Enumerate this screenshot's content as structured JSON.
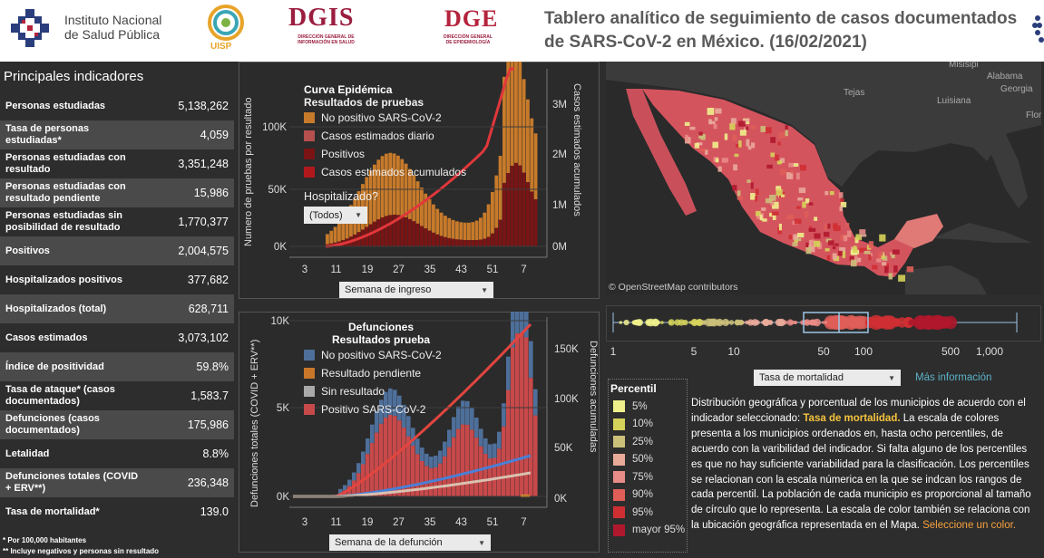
{
  "header": {
    "institute_line1": "Instituto Nacional",
    "institute_line2": "de Salud Pública",
    "uisp": "UISP",
    "dgis": "DGIS",
    "dgis_sub1": "DIRECCIÓN GENERAL DE",
    "dgis_sub2": "INFORMACIÓN EN SALUD",
    "dge": "DGE",
    "dge_sub1": "DIRECCIÓN GENERAL",
    "dge_sub2": "DE EPIDEMIOLOGÍA",
    "title_line1": "Tablero analítico de seguimiento de casos documentados",
    "title_line2": "de SARS-CoV-2 en México. (16/02/2021)"
  },
  "indicators": {
    "heading": "Principales indicadores",
    "rows": [
      {
        "label": "Personas estudiadas",
        "value": "5,138,262"
      },
      {
        "label": "Tasa de personas estudiadas*",
        "value": "4,059"
      },
      {
        "label": "Personas estudiadas con resultado",
        "value": "3,351,248"
      },
      {
        "label": "Personas estudiadas con resultado pendiente",
        "value": "15,986"
      },
      {
        "label": "Personas estudiadas sin posibilidad de resultado",
        "value": "1,770,377"
      },
      {
        "label": "Positivos",
        "value": "2,004,575"
      },
      {
        "label": "Hospitalizados positivos",
        "value": "377,682"
      },
      {
        "label": "Hospitalizados (total)",
        "value": "628,711"
      },
      {
        "label": "Casos estimados",
        "value": "3,073,102"
      },
      {
        "label": "Índice de positividad",
        "value": "59.8%"
      },
      {
        "label": "Tasa de ataque* (casos documentados)",
        "value": "1,583.7"
      },
      {
        "label": "Defunciones (casos documentados)",
        "value": "175,986"
      },
      {
        "label": "Letalidad",
        "value": "8.8%"
      },
      {
        "label": "Defunciones totales (COVID + ERV**)",
        "value": "236,348"
      },
      {
        "label": "Tasa de mortalidad*",
        "value": "139.0"
      }
    ],
    "footnote1": "*   Por 100,000 habitantes",
    "footnote2": "**  Incluye negativos y personas sin resultado"
  },
  "curva": {
    "title": "Curva Epidémica",
    "subtitle": "Resultados de pruebas",
    "legend": [
      {
        "label": "No positivo SARS-CoV-2",
        "color": "#c77a2a"
      },
      {
        "label": "Casos estimados diario",
        "color": "#b5504f"
      },
      {
        "label": "Positivos",
        "color": "#7a1414"
      },
      {
        "label": "Casos estimados acumulados",
        "color": "#b0181c"
      }
    ],
    "filter_label": "Hospitalizado?",
    "filter_value": "(Todos)",
    "y_left_label": "Numero de pruebas por resultado",
    "y_right_label": "Casos estimados acumulados",
    "y_left_ticks": [
      "100K",
      "50K",
      "0K"
    ],
    "y_right_ticks": [
      "3M",
      "2M",
      "1M",
      "0M"
    ],
    "x_ticks": [
      "3",
      "11",
      "19",
      "27",
      "35",
      "43",
      "51",
      "7"
    ],
    "x_select": "Semana de ingreso"
  },
  "defunciones": {
    "title": "Defunciones",
    "subtitle": "Resultados  prueba",
    "legend": [
      {
        "label": "No positivo SARS-CoV-2",
        "color": "#4e6f9a"
      },
      {
        "label": "Resultado pendiente",
        "color": "#c8772a"
      },
      {
        "label": "Sin resultado",
        "color": "#a9a9a9"
      },
      {
        "label": "Positivo SARS-CoV-2",
        "color": "#c7494a"
      }
    ],
    "y_left_label": "Defunciones totales (COVID + ERV**)",
    "y_right_label": "Defunciones acumuladas",
    "y_left_ticks": [
      "10K",
      "5K",
      "0K"
    ],
    "y_right_ticks": [
      "150K",
      "100K",
      "50K",
      "0K"
    ],
    "x_ticks": [
      "3",
      "11",
      "19",
      "27",
      "35",
      "43",
      "51",
      "7"
    ],
    "x_select": "Semana de la defunción"
  },
  "map": {
    "labels": [
      {
        "text": "Misisipi"
      },
      {
        "text": "Alabama"
      },
      {
        "text": "Georgia"
      },
      {
        "text": "Tejas"
      },
      {
        "text": "Luisiana"
      },
      {
        "text": "Florida"
      }
    ],
    "attribution": "© OpenStreetMap contributors"
  },
  "boxplot": {
    "ticks": [
      "1",
      "5",
      "10",
      "50",
      "100",
      "500",
      "1,000"
    ],
    "select": "Tasa de mortalidad",
    "more_info": "Más información"
  },
  "percentil": {
    "title": "Percentil",
    "items": [
      {
        "label": "5%",
        "color": "#efef8c"
      },
      {
        "label": "10%",
        "color": "#d6d35a"
      },
      {
        "label": "25%",
        "color": "#cbbf7a"
      },
      {
        "label": "50%",
        "color": "#e9aa9a"
      },
      {
        "label": "75%",
        "color": "#e98b86"
      },
      {
        "label": "90%",
        "color": "#df5e58"
      },
      {
        "label": "95%",
        "color": "#cf2f33"
      },
      {
        "label": "mayor 95%",
        "color": "#b0182d"
      }
    ]
  },
  "description": {
    "part1": "Distribución geográfica y porcentual de los municipios de acuerdo con el indicador seleccionado: ",
    "indicator": "Tasa de mortalidad.",
    "part2": " La escala de colores presenta a los municipios ordenados en, hasta ocho percentiles, de acuerdo con la varibilidad del indicador. Si falta alguno de los percentiles es que no hay suficiente variabilidad para la clasificación. Los percentiles se relacionan con la escala númerica en la que se indcan los rangos de cada percentil. La población de cada municipio es proporcional al tamaño de círculo que lo representa. La escala de color también se relaciona con la ubicación geográfica representada en el Mapa. ",
    "link": "Seleccione un color."
  }
}
